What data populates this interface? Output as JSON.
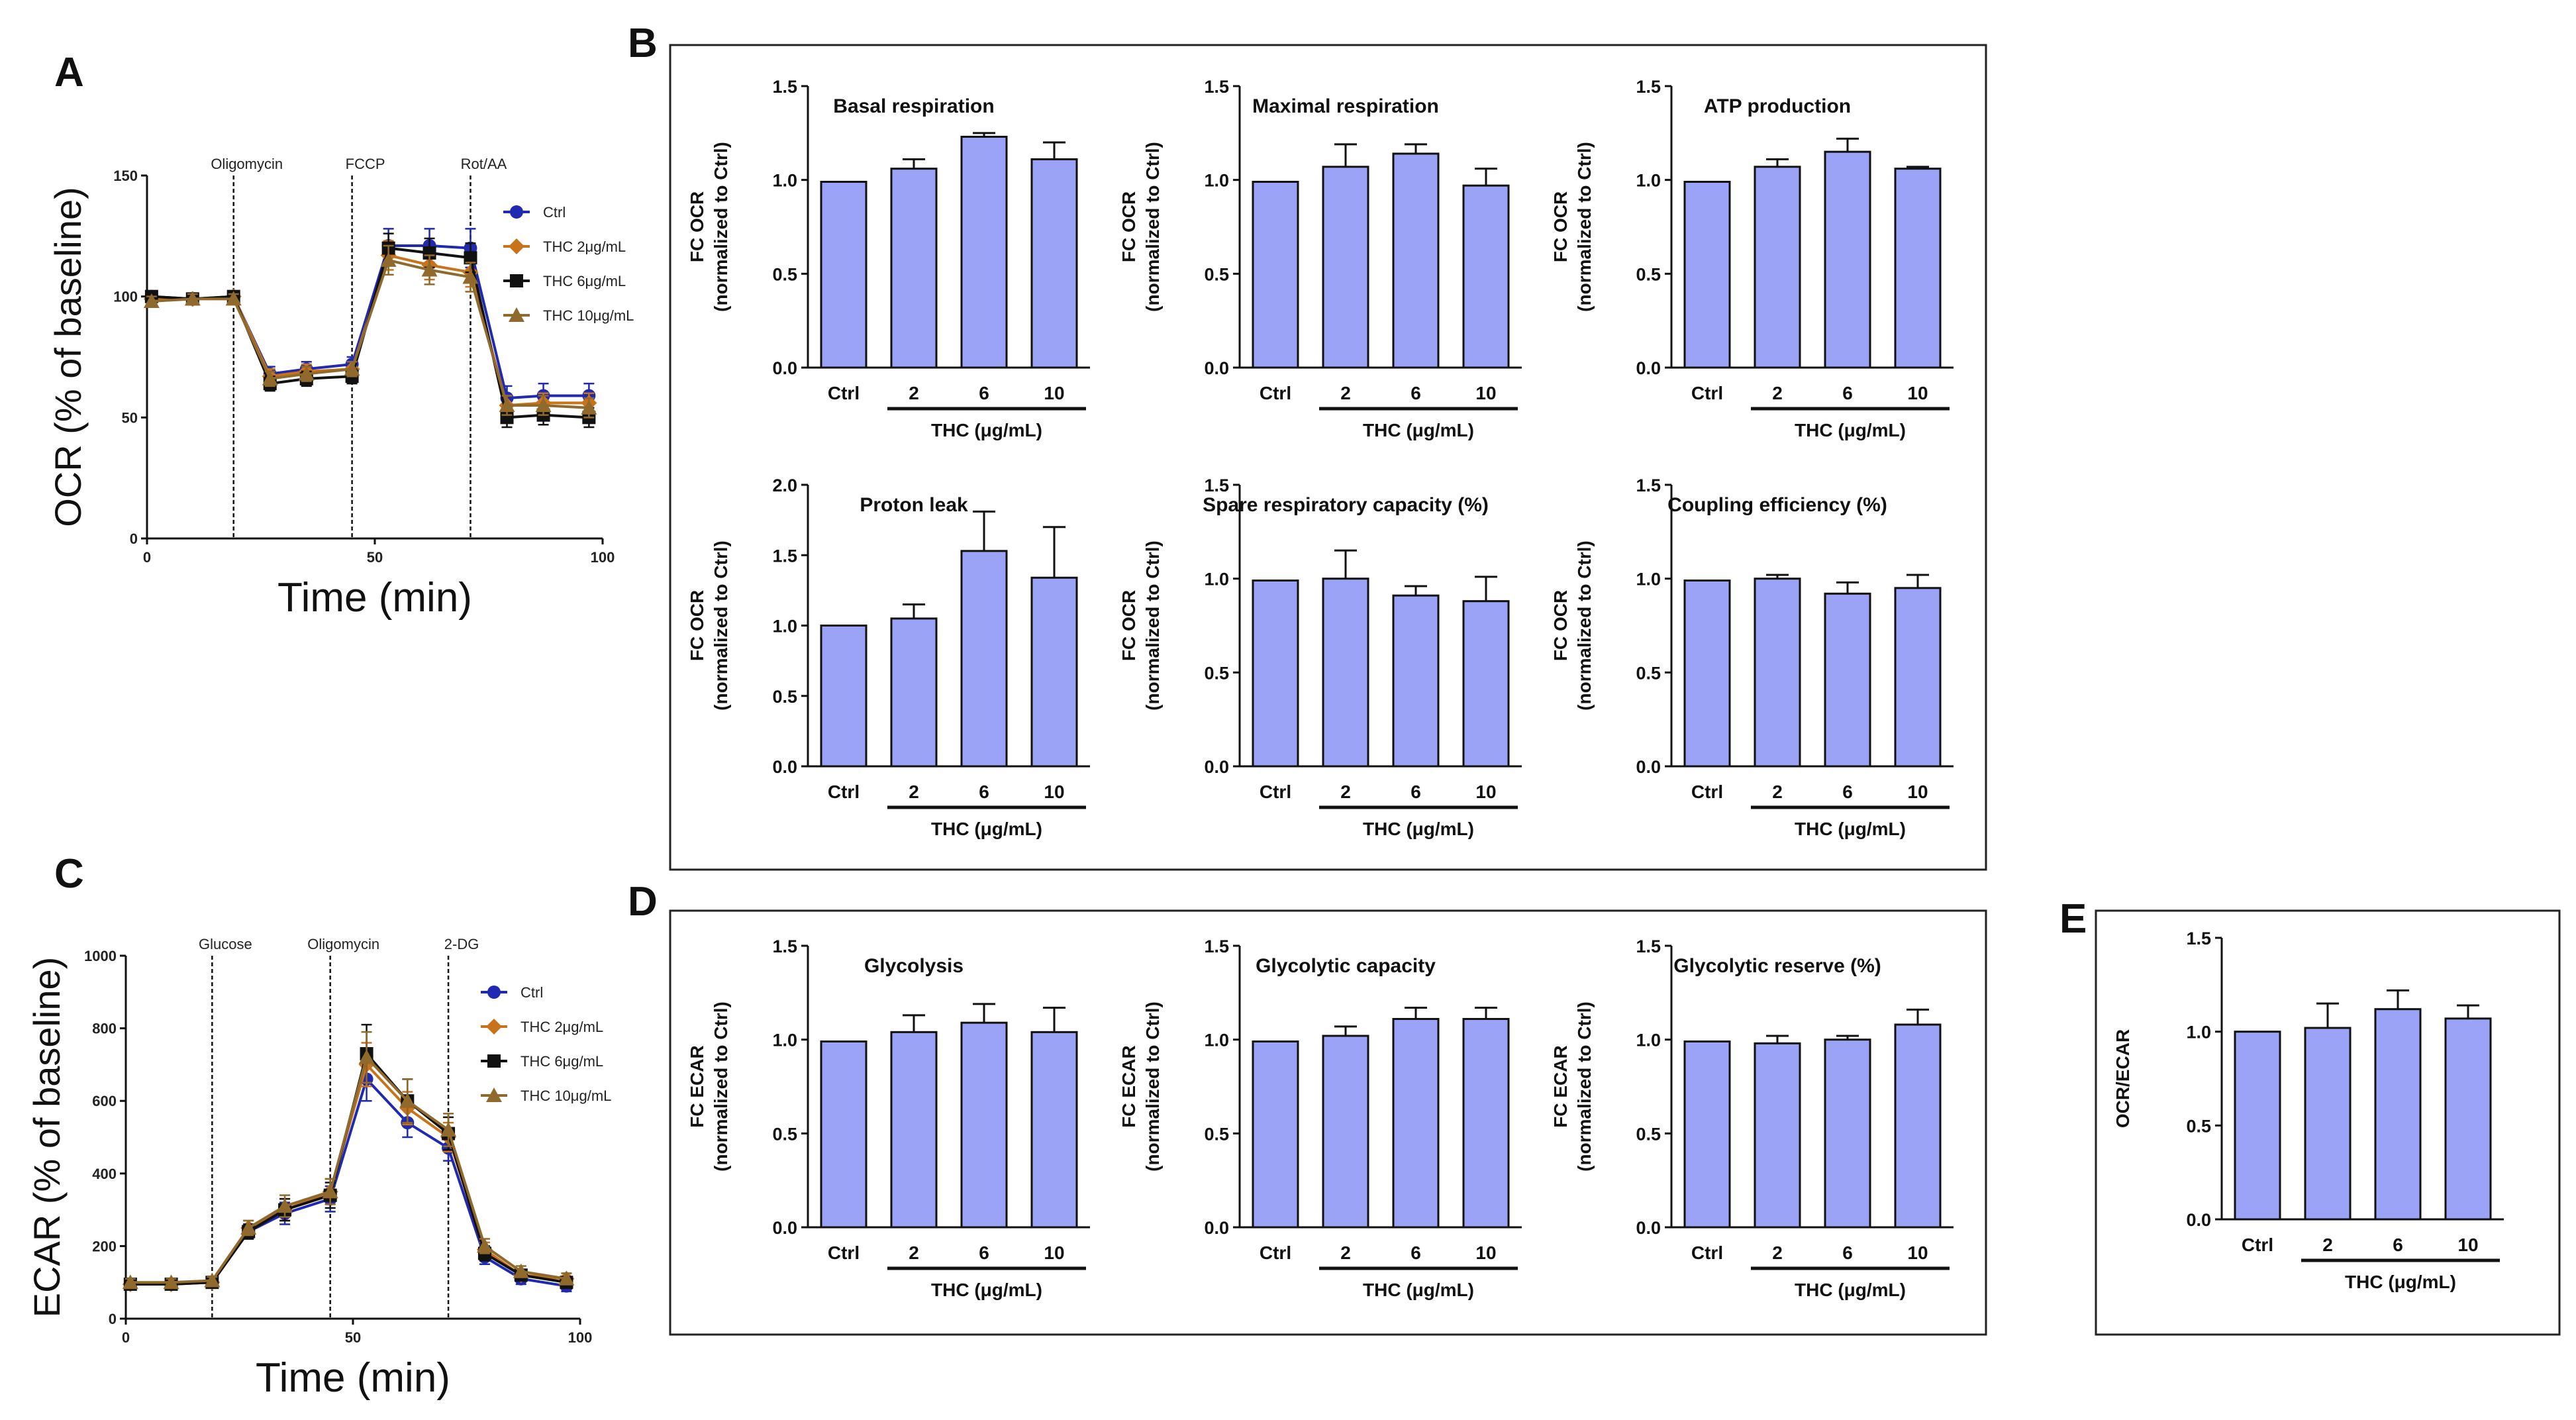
{
  "colors": {
    "bar_fill": "#9aa3f5",
    "ctrl": "#1f2ab0",
    "thc2": "#c8731a",
    "thc6": "#111111",
    "thc10": "#8f6a2c"
  },
  "panels": {
    "A": {
      "letter": "A"
    },
    "B": {
      "letter": "B"
    },
    "C": {
      "letter": "C"
    },
    "D": {
      "letter": "D"
    },
    "E": {
      "letter": "E"
    }
  },
  "chart_data": [
    {
      "id": "A",
      "type": "line",
      "xlabel": "Time (min)",
      "ylabel": "OCR (% of baseline)",
      "xlim": [
        0,
        100
      ],
      "ylim": [
        0,
        150
      ],
      "xticks": [
        "0",
        "50",
        "100"
      ],
      "yticks": [
        "0",
        "50",
        "100",
        "150"
      ],
      "injections": [
        {
          "label": "Oligomycin",
          "x": 19
        },
        {
          "label": "FCCP",
          "x": 45
        },
        {
          "label": "Rot/AA",
          "x": 71
        }
      ],
      "x": [
        1,
        10,
        19,
        27,
        35,
        45,
        53,
        62,
        71,
        79,
        87,
        97
      ],
      "series": [
        {
          "name": "Ctrl",
          "marker": "circle",
          "values": [
            100,
            99,
            100,
            68,
            70,
            72,
            121,
            121,
            120,
            58,
            59,
            59
          ],
          "err": [
            2,
            2,
            2,
            3,
            3,
            3,
            7,
            7,
            8,
            5,
            5,
            5
          ]
        },
        {
          "name": "THC 2μg/mL",
          "marker": "diamond",
          "values": [
            99,
            99,
            100,
            67,
            69,
            70,
            117,
            113,
            110,
            55,
            56,
            56
          ],
          "err": [
            2,
            2,
            2,
            3,
            3,
            3,
            6,
            6,
            6,
            4,
            4,
            4
          ]
        },
        {
          "name": "THC 6μg/mL",
          "marker": "square",
          "values": [
            100,
            99,
            100,
            64,
            66,
            67,
            120,
            118,
            116,
            50,
            51,
            50
          ],
          "err": [
            2,
            2,
            2,
            3,
            3,
            3,
            6,
            6,
            6,
            4,
            4,
            4
          ]
        },
        {
          "name": "THC 10μg/mL",
          "marker": "triangle",
          "values": [
            98,
            99,
            99,
            66,
            68,
            70,
            115,
            111,
            108,
            55,
            55,
            54
          ],
          "err": [
            2,
            2,
            2,
            3,
            3,
            3,
            6,
            6,
            6,
            4,
            4,
            4
          ]
        }
      ]
    },
    {
      "id": "C",
      "type": "line",
      "xlabel": "Time (min)",
      "ylabel": "ECAR (% of baseline)",
      "xlim": [
        0,
        100
      ],
      "ylim": [
        0,
        1000
      ],
      "xticks": [
        "0",
        "50",
        "100"
      ],
      "yticks": [
        "0",
        "200",
        "400",
        "600",
        "800",
        "1000"
      ],
      "injections": [
        {
          "label": "Glucose",
          "x": 19
        },
        {
          "label": "Oligomycin",
          "x": 45
        },
        {
          "label": "2-DG",
          "x": 71
        }
      ],
      "x": [
        1,
        10,
        19,
        27,
        35,
        45,
        53,
        62,
        71,
        79,
        87,
        97
      ],
      "series": [
        {
          "name": "Ctrl",
          "marker": "circle",
          "values": [
            95,
            95,
            100,
            240,
            290,
            330,
            660,
            540,
            470,
            170,
            110,
            90
          ],
          "err": [
            10,
            10,
            10,
            20,
            30,
            35,
            60,
            40,
            35,
            20,
            15,
            15
          ]
        },
        {
          "name": "THC 2μg/mL",
          "marker": "diamond",
          "values": [
            95,
            95,
            100,
            250,
            300,
            350,
            700,
            580,
            500,
            190,
            120,
            110
          ],
          "err": [
            10,
            10,
            10,
            20,
            30,
            35,
            60,
            45,
            40,
            20,
            15,
            15
          ]
        },
        {
          "name": "THC 6μg/mL",
          "marker": "square",
          "values": [
            95,
            95,
            100,
            240,
            300,
            340,
            730,
            600,
            510,
            180,
            120,
            100
          ],
          "err": [
            10,
            10,
            10,
            20,
            30,
            35,
            80,
            60,
            45,
            20,
            15,
            15
          ]
        },
        {
          "name": "THC 10μg/mL",
          "marker": "triangle",
          "values": [
            100,
            100,
            105,
            250,
            310,
            350,
            720,
            600,
            520,
            200,
            130,
            110
          ],
          "err": [
            10,
            10,
            10,
            20,
            30,
            35,
            70,
            60,
            45,
            20,
            15,
            15
          ]
        }
      ]
    },
    {
      "id": "B1",
      "type": "bar",
      "title": "Basal respiration",
      "ylabel": "FC OCR\n(normalized to Ctrl)",
      "ylim": [
        0,
        1.5
      ],
      "yticks": [
        "0.0",
        "0.5",
        "1.0",
        "1.5"
      ],
      "categories": [
        "Ctrl",
        "2",
        "6",
        "10"
      ],
      "values": [
        0.99,
        1.06,
        1.23,
        1.11
      ],
      "err": [
        0,
        0.05,
        0.02,
        0.09
      ],
      "group_label": "THC (μg/mL)"
    },
    {
      "id": "B2",
      "type": "bar",
      "title": "Maximal  respiration",
      "ylabel": "FC OCR\n(normalized to Ctrl)",
      "ylim": [
        0,
        1.5
      ],
      "yticks": [
        "0.0",
        "0.5",
        "1.0",
        "1.5"
      ],
      "categories": [
        "Ctrl",
        "2",
        "6",
        "10"
      ],
      "values": [
        0.99,
        1.07,
        1.14,
        0.97
      ],
      "err": [
        0,
        0.12,
        0.05,
        0.09
      ],
      "group_label": "THC (μg/mL)"
    },
    {
      "id": "B3",
      "type": "bar",
      "title": "ATP  production",
      "ylabel": "FC OCR\n(normalized to Ctrl)",
      "ylim": [
        0,
        1.5
      ],
      "yticks": [
        "0.0",
        "0.5",
        "1.0",
        "1.5"
      ],
      "categories": [
        "Ctrl",
        "2",
        "6",
        "10"
      ],
      "values": [
        0.99,
        1.07,
        1.15,
        1.06
      ],
      "err": [
        0,
        0.04,
        0.07,
        0.01
      ],
      "group_label": "THC (μg/mL)"
    },
    {
      "id": "B4",
      "type": "bar",
      "title": "Proton leak",
      "ylabel": "FC OCR\n(normalized to Ctrl)",
      "ylim": [
        0,
        2.0
      ],
      "yticks": [
        "0.0",
        "0.5",
        "1.0",
        "1.5",
        "2.0"
      ],
      "categories": [
        "Ctrl",
        "2",
        "6",
        "10"
      ],
      "values": [
        1.0,
        1.05,
        1.53,
        1.34
      ],
      "err": [
        0,
        0.1,
        0.28,
        0.36
      ],
      "group_label": "THC (μg/mL)"
    },
    {
      "id": "B5",
      "type": "bar",
      "title": "Spare respiratory capacity (%)",
      "ylabel": "FC OCR\n(normalized to Ctrl)",
      "ylim": [
        0,
        1.5
      ],
      "yticks": [
        "0.0",
        "0.5",
        "1.0",
        "1.5"
      ],
      "categories": [
        "Ctrl",
        "2",
        "6",
        "10"
      ],
      "values": [
        0.99,
        1.0,
        0.91,
        0.88
      ],
      "err": [
        0,
        0.15,
        0.05,
        0.13
      ],
      "group_label": "THC (μg/mL)"
    },
    {
      "id": "B6",
      "type": "bar",
      "title": "Coupling efficiency (%)",
      "ylabel": "FC OCR\n(normalized to Ctrl)",
      "ylim": [
        0,
        1.5
      ],
      "yticks": [
        "0.0",
        "0.5",
        "1.0",
        "1.5"
      ],
      "categories": [
        "Ctrl",
        "2",
        "6",
        "10"
      ],
      "values": [
        0.99,
        1.0,
        0.92,
        0.95
      ],
      "err": [
        0,
        0.02,
        0.06,
        0.07
      ],
      "group_label": "THC (μg/mL)"
    },
    {
      "id": "D1",
      "type": "bar",
      "title": "Glycolysis",
      "ylabel": "FC ECAR\n(normalized to Ctrl)",
      "ylim": [
        0,
        1.5
      ],
      "yticks": [
        "0.0",
        "0.5",
        "1.0",
        "1.5"
      ],
      "categories": [
        "Ctrl",
        "2",
        "6",
        "10"
      ],
      "values": [
        0.99,
        1.04,
        1.09,
        1.04
      ],
      "err": [
        0,
        0.09,
        0.1,
        0.13
      ],
      "group_label": "THC (μg/mL)"
    },
    {
      "id": "D2",
      "type": "bar",
      "title": "Glycolytic capacity",
      "ylabel": "FC ECAR\n(normalized to Ctrl)",
      "ylim": [
        0,
        1.5
      ],
      "yticks": [
        "0.0",
        "0.5",
        "1.0",
        "1.5"
      ],
      "categories": [
        "Ctrl",
        "2",
        "6",
        "10"
      ],
      "values": [
        0.99,
        1.02,
        1.11,
        1.11
      ],
      "err": [
        0,
        0.05,
        0.06,
        0.06
      ],
      "group_label": "THC (μg/mL)"
    },
    {
      "id": "D3",
      "type": "bar",
      "title": "Glycolytic reserve (%)",
      "ylabel": "FC ECAR\n(normalized to Ctrl)",
      "ylim": [
        0,
        1.5
      ],
      "yticks": [
        "0.0",
        "0.5",
        "1.0",
        "1.5"
      ],
      "categories": [
        "Ctrl",
        "2",
        "6",
        "10"
      ],
      "values": [
        0.99,
        0.98,
        1.0,
        1.08
      ],
      "err": [
        0,
        0.04,
        0.02,
        0.08
      ],
      "group_label": "THC (μg/mL)"
    },
    {
      "id": "E",
      "type": "bar",
      "title": "",
      "ylabel": "OCR/ECAR",
      "ylim": [
        0,
        1.5
      ],
      "yticks": [
        "0.0",
        "0.5",
        "1.0",
        "1.5"
      ],
      "categories": [
        "Ctrl",
        "2",
        "6",
        "10"
      ],
      "values": [
        1.0,
        1.02,
        1.12,
        1.07
      ],
      "err": [
        0,
        0.13,
        0.1,
        0.07
      ],
      "group_label": "THC (μg/mL)"
    }
  ]
}
